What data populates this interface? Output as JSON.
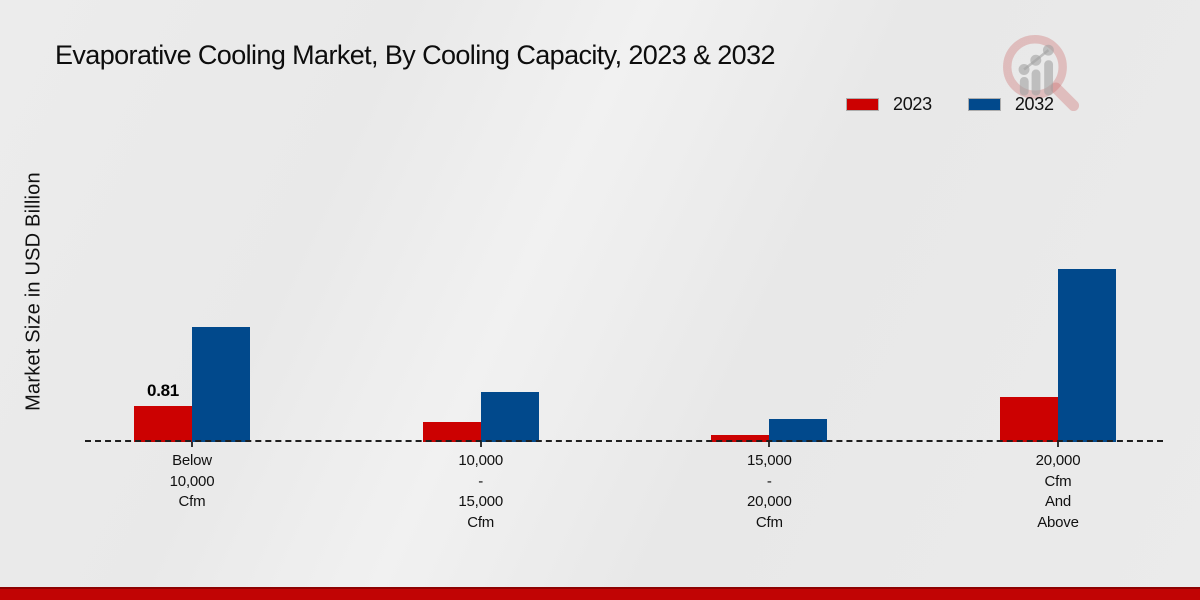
{
  "header": {
    "title": "Evaporative Cooling Market, By Cooling Capacity, 2023 & 2032"
  },
  "legend": [
    {
      "label": "2023",
      "color": "#cc0101"
    },
    {
      "label": "2032",
      "color": "#01498c"
    }
  ],
  "chart_data": {
    "type": "bar",
    "title": "Evaporative Cooling Market, By Cooling Capacity, 2023 & 2032",
    "xlabel": "",
    "ylabel": "Market Size in USD Billion",
    "categories": [
      [
        "Below",
        "10,000",
        "Cfm"
      ],
      [
        "10,000",
        "-",
        "15,000",
        "Cfm"
      ],
      [
        "15,000",
        "-",
        "20,000",
        "Cfm"
      ],
      [
        "20,000",
        "Cfm",
        "And",
        "Above"
      ]
    ],
    "series": [
      {
        "name": "2023",
        "color": "#cc0101",
        "values": [
          0.81,
          0.46,
          0.16,
          1.02
        ]
      },
      {
        "name": "2032",
        "color": "#01498c",
        "values": [
          2.59,
          1.13,
          0.52,
          3.9
        ]
      }
    ],
    "data_labels": [
      {
        "series_index": 0,
        "category_index": 0,
        "text": "0.81"
      }
    ],
    "ylim": [
      0,
      4.2
    ],
    "grid": false,
    "legend_position": "top-right",
    "baseline_style": "dashed",
    "units": "USD Billion"
  },
  "footer": {
    "bar_color": "#c10404"
  },
  "logo": {
    "name": "market-research-magnifier-logo",
    "ring_color": "rgba(201,96,96,0.32)",
    "bars_color": "rgba(160,160,160,0.55)"
  }
}
